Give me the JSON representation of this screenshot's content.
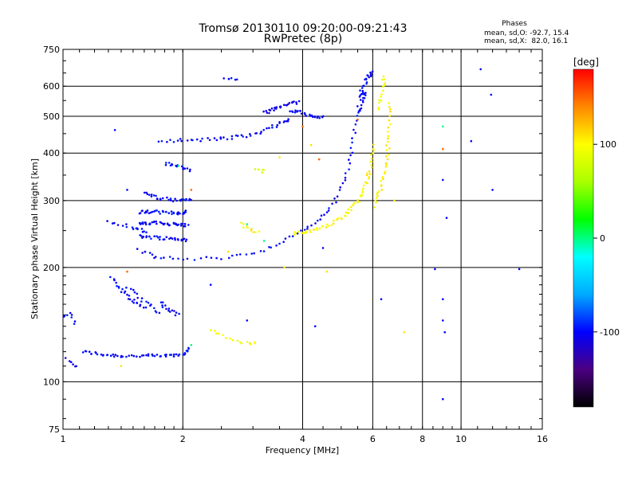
{
  "chart_data": {
    "type": "scatter",
    "title_line1": "Tromsø 20130110 09:20:00-09:21:43",
    "title_line2": "RwPretec (8p)",
    "phases_header": "Phases",
    "phases_line_o": "mean, sd,O: -92.7, 15.4",
    "phases_line_x": "mean, sd,X:  82.0, 16.1",
    "xlabel": "Frequency [MHz]",
    "ylabel": "Stationary phase Virtual Height [km]",
    "x_scale": "log2",
    "y_scale": "log",
    "xlim": [
      1,
      16
    ],
    "ylim": [
      75,
      750
    ],
    "x_ticks": [
      {
        "v": 1,
        "label": "1"
      },
      {
        "v": 2,
        "label": "2"
      },
      {
        "v": 4,
        "label": "4"
      },
      {
        "v": 6,
        "label": "6"
      },
      {
        "v": 8,
        "label": "8"
      },
      {
        "v": 10,
        "label": "10"
      },
      {
        "v": 16,
        "label": "16"
      }
    ],
    "y_ticks": [
      {
        "v": 75,
        "label": "75"
      },
      {
        "v": 100,
        "label": "100"
      },
      {
        "v": 200,
        "label": "200"
      },
      {
        "v": 300,
        "label": "300"
      },
      {
        "v": 400,
        "label": "400"
      },
      {
        "v": 500,
        "label": "500"
      },
      {
        "v": 600,
        "label": "600"
      },
      {
        "v": 750,
        "label": "750"
      }
    ],
    "grid_x": [
      2,
      4,
      6,
      8,
      10
    ],
    "grid_y": [
      100,
      200,
      300,
      400,
      500,
      600
    ],
    "colorbar": {
      "label": "[deg]",
      "range": [
        -180,
        180
      ],
      "ticks": [
        {
          "v": 100,
          "label": "100"
        },
        {
          "v": 0,
          "label": "0"
        },
        {
          "v": -100,
          "label": "-100"
        }
      ],
      "colormap": [
        "#000000",
        "#4b0082",
        "#0000ff",
        "#00aaff",
        "#00ffff",
        "#00ff00",
        "#aaff00",
        "#ffff00",
        "#ff8800",
        "#ff0000"
      ]
    },
    "series": [
      {
        "kind": "curve",
        "phase": -100,
        "n": 60,
        "x": [
          1.12,
          1.25,
          1.4,
          1.6,
          1.8,
          2.0,
          2.08
        ],
        "y": [
          120,
          118,
          117,
          117,
          117,
          118,
          122
        ]
      },
      {
        "kind": "curve",
        "phase": -105,
        "n": 6,
        "x": [
          1.02,
          1.05,
          1.08
        ],
        "y": [
          115,
          112,
          110
        ]
      },
      {
        "kind": "curve",
        "phase": -100,
        "n": 8,
        "x": [
          1.0,
          1.04,
          1.07
        ],
        "y": [
          148,
          152,
          143
        ]
      },
      {
        "kind": "curve",
        "phase": -100,
        "n": 24,
        "x": [
          1.32,
          1.45,
          1.6
        ],
        "y": [
          187,
          168,
          156
        ]
      },
      {
        "kind": "curve",
        "phase": -100,
        "n": 16,
        "x": [
          1.45,
          1.6,
          1.75
        ],
        "y": [
          178,
          163,
          152
        ]
      },
      {
        "kind": "curve",
        "phase": -100,
        "n": 14,
        "x": [
          1.75,
          1.85,
          1.95
        ],
        "y": [
          162,
          155,
          150
        ]
      },
      {
        "kind": "curve",
        "phase": -100,
        "n": 16,
        "x": [
          1.3,
          1.5,
          1.62
        ],
        "y": [
          265,
          255,
          248
        ]
      },
      {
        "kind": "curve",
        "phase": -100,
        "n": 40,
        "x": [
          1.55,
          1.7,
          1.9,
          2.05
        ],
        "y": [
          260,
          262,
          260,
          258
        ]
      },
      {
        "kind": "curve",
        "phase": -100,
        "n": 36,
        "x": [
          1.55,
          1.7,
          1.9,
          2.05
        ],
        "y": [
          280,
          280,
          278,
          280
        ]
      },
      {
        "kind": "curve",
        "phase": -100,
        "n": 30,
        "x": [
          1.55,
          1.7,
          1.9,
          2.05
        ],
        "y": [
          242,
          240,
          238,
          236
        ]
      },
      {
        "kind": "curve",
        "phase": -100,
        "n": 30,
        "x": [
          1.6,
          1.75,
          1.95,
          2.1
        ],
        "y": [
          313,
          305,
          300,
          303
        ]
      },
      {
        "kind": "curve",
        "phase": -100,
        "n": 16,
        "x": [
          1.8,
          1.95,
          2.1
        ],
        "y": [
          375,
          370,
          360
        ]
      },
      {
        "kind": "curve",
        "phase": -100,
        "n": 80,
        "x": [
          1.55,
          1.7,
          2.0,
          2.5,
          3.0,
          3.5,
          4.0,
          4.4,
          4.8,
          5.1,
          5.3,
          5.45,
          5.6
        ],
        "y": [
          222,
          213,
          210,
          212,
          218,
          230,
          250,
          268,
          295,
          340,
          400,
          480,
          580
        ]
      },
      {
        "kind": "curve",
        "phase": 100,
        "n": 70,
        "x": [
          3.8,
          4.2,
          4.6,
          5.0,
          5.4,
          5.7,
          5.9,
          6.05
        ],
        "y": [
          245,
          250,
          258,
          270,
          290,
          320,
          360,
          420
        ]
      },
      {
        "kind": "curve",
        "phase": 105,
        "n": 40,
        "x": [
          6.1,
          6.3,
          6.5,
          6.6,
          6.6
        ],
        "y": [
          290,
          330,
          380,
          450,
          540
        ]
      },
      {
        "kind": "curve",
        "phase": 95,
        "n": 14,
        "x": [
          6.2,
          6.3,
          6.4,
          6.4
        ],
        "y": [
          520,
          560,
          600,
          640
        ]
      },
      {
        "kind": "curve",
        "phase": -100,
        "n": 24,
        "x": [
          5.6,
          5.7,
          5.8,
          5.9,
          5.95
        ],
        "y": [
          560,
          600,
          630,
          640,
          650
        ]
      },
      {
        "kind": "curve",
        "phase": -100,
        "n": 50,
        "x": [
          1.75,
          2.0,
          2.3,
          2.6,
          2.9,
          3.2,
          3.5,
          3.7
        ],
        "y": [
          432,
          432,
          434,
          438,
          445,
          458,
          478,
          490
        ]
      },
      {
        "kind": "curve",
        "phase": -100,
        "n": 24,
        "x": [
          3.7,
          3.9,
          4.1,
          4.3,
          4.5
        ],
        "y": [
          520,
          515,
          505,
          500,
          495
        ]
      },
      {
        "kind": "curve",
        "phase": -110,
        "n": 26,
        "x": [
          3.2,
          3.35,
          3.5,
          3.7,
          3.9
        ],
        "y": [
          510,
          520,
          530,
          540,
          545
        ]
      },
      {
        "kind": "curve",
        "phase": 100,
        "n": 16,
        "x": [
          2.35,
          2.5,
          2.7,
          2.9,
          3.05
        ],
        "y": [
          138,
          133,
          128,
          126,
          127
        ]
      },
      {
        "kind": "curve",
        "phase": 100,
        "n": 10,
        "x": [
          2.8,
          2.95,
          3.1
        ],
        "y": [
          260,
          252,
          248
        ]
      },
      {
        "kind": "curve",
        "phase": 80,
        "n": 5,
        "x": [
          3.05,
          3.15,
          3.2
        ],
        "y": [
          362,
          360,
          358
        ]
      },
      {
        "kind": "curve",
        "phase": -100,
        "n": 12,
        "x": [
          5.5,
          5.6,
          5.7,
          5.75
        ],
        "y": [
          510,
          530,
          560,
          580
        ]
      },
      {
        "kind": "curve",
        "phase": -100,
        "n": 6,
        "x": [
          2.55,
          2.65,
          2.75
        ],
        "y": [
          632,
          630,
          628
        ]
      },
      {
        "kind": "scatter",
        "phase": -100,
        "pts": [
          [
            1.35,
            460
          ],
          [
            1.45,
            320
          ],
          [
            2.35,
            180
          ],
          [
            2.9,
            145
          ],
          [
            4.3,
            140
          ],
          [
            4.5,
            225
          ],
          [
            8.6,
            198
          ],
          [
            9.0,
            165
          ],
          [
            9.0,
            145
          ],
          [
            9.1,
            135
          ],
          [
            9.2,
            270
          ],
          [
            9.0,
            340
          ],
          [
            10.6,
            430
          ],
          [
            11.2,
            665
          ],
          [
            11.9,
            570
          ],
          [
            12.0,
            320
          ],
          [
            14.0,
            198
          ],
          [
            6.3,
            165
          ],
          [
            9.0,
            90
          ]
        ]
      },
      {
        "kind": "scatter",
        "phase": 110,
        "pts": [
          [
            4.2,
            420
          ],
          [
            5.8,
            350
          ],
          [
            6.8,
            300
          ],
          [
            4.6,
            195
          ],
          [
            7.2,
            135
          ],
          [
            1.4,
            110
          ],
          [
            2.6,
            220
          ],
          [
            3.5,
            390
          ],
          [
            3.6,
            200
          ]
        ]
      },
      {
        "kind": "scatter",
        "phase": 150,
        "pts": [
          [
            1.45,
            195
          ],
          [
            2.1,
            320
          ],
          [
            4.0,
            470
          ],
          [
            9.0,
            410
          ],
          [
            4.4,
            385
          ],
          [
            5.5,
            490
          ]
        ]
      },
      {
        "kind": "scatter",
        "phase": 0,
        "pts": [
          [
            1.95,
            370
          ],
          [
            2.9,
            260
          ],
          [
            3.2,
            235
          ],
          [
            9.0,
            470
          ],
          [
            2.1,
            125
          ]
        ]
      }
    ]
  }
}
